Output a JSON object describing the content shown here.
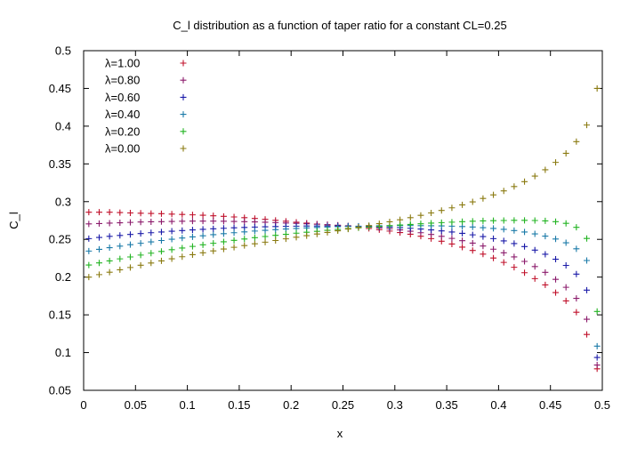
{
  "chart_data": {
    "type": "scatter",
    "title": "C_l distribution as a function of taper ratio for a constant CL=0.25",
    "xlabel": "x",
    "ylabel": "C_l",
    "xlim": [
      0,
      0.5
    ],
    "ylim": [
      0.05,
      0.5
    ],
    "x_ticks": [
      "0",
      "0.05",
      "0.1",
      "0.15",
      "0.2",
      "0.25",
      "0.3",
      "0.35",
      "0.4",
      "0.45",
      "0.5"
    ],
    "y_ticks": [
      "0.05",
      "0.1",
      "0.15",
      "0.2",
      "0.25",
      "0.3",
      "0.35",
      "0.4",
      "0.45",
      "0.5"
    ],
    "grid": false,
    "legend_position": "top-left",
    "marker": "+",
    "x": [
      0.005,
      0.015,
      0.025,
      0.035,
      0.045,
      0.055,
      0.065,
      0.075,
      0.085,
      0.095,
      0.105,
      0.115,
      0.125,
      0.135,
      0.145,
      0.155,
      0.165,
      0.175,
      0.185,
      0.195,
      0.205,
      0.215,
      0.225,
      0.235,
      0.245,
      0.255,
      0.265,
      0.275,
      0.285,
      0.295,
      0.305,
      0.315,
      0.325,
      0.335,
      0.345,
      0.355,
      0.365,
      0.375,
      0.385,
      0.395,
      0.405,
      0.415,
      0.425,
      0.435,
      0.445,
      0.455,
      0.465,
      0.475,
      0.485,
      0.495
    ],
    "series": [
      {
        "name": "λ=1.00",
        "color": "#c0102a",
        "values": [
          0.286,
          0.286,
          0.286,
          0.2855,
          0.285,
          0.2847,
          0.2843,
          0.284,
          0.2835,
          0.283,
          0.2825,
          0.282,
          0.2813,
          0.2805,
          0.2797,
          0.2787,
          0.2777,
          0.2765,
          0.2752,
          0.274,
          0.2727,
          0.2715,
          0.2703,
          0.2693,
          0.2683,
          0.2673,
          0.266,
          0.2645,
          0.2628,
          0.261,
          0.259,
          0.2568,
          0.2542,
          0.251,
          0.2475,
          0.2438,
          0.2397,
          0.2353,
          0.2305,
          0.2253,
          0.2195,
          0.213,
          0.2058,
          0.198,
          0.1897,
          0.1795,
          0.1685,
          0.1535,
          0.124,
          0.0785
        ]
      },
      {
        "name": "λ=0.80",
        "color": "#8b1a6b",
        "values": [
          0.2705,
          0.271,
          0.2715,
          0.272,
          0.2725,
          0.273,
          0.2733,
          0.2735,
          0.2738,
          0.274,
          0.2742,
          0.2742,
          0.2742,
          0.274,
          0.2738,
          0.2735,
          0.2732,
          0.2727,
          0.2722,
          0.2717,
          0.2712,
          0.2707,
          0.27,
          0.2695,
          0.2688,
          0.268,
          0.2672,
          0.2662,
          0.2652,
          0.264,
          0.2625,
          0.2608,
          0.2588,
          0.2565,
          0.254,
          0.2513,
          0.2483,
          0.245,
          0.2412,
          0.237,
          0.2322,
          0.2268,
          0.2208,
          0.214,
          0.2063,
          0.197,
          0.1865,
          0.1718,
          0.1442,
          0.0835
        ]
      },
      {
        "name": "λ=0.60",
        "color": "#1a1aa8",
        "values": [
          0.251,
          0.2525,
          0.254,
          0.2552,
          0.2565,
          0.2577,
          0.2588,
          0.2598,
          0.2608,
          0.2617,
          0.2625,
          0.2633,
          0.264,
          0.2647,
          0.2653,
          0.2658,
          0.2663,
          0.2667,
          0.267,
          0.2672,
          0.2675,
          0.2677,
          0.2677,
          0.2677,
          0.2677,
          0.2675,
          0.2673,
          0.267,
          0.2667,
          0.2662,
          0.2655,
          0.2647,
          0.2637,
          0.2625,
          0.2612,
          0.2598,
          0.258,
          0.256,
          0.2537,
          0.251,
          0.248,
          0.2445,
          0.2405,
          0.2358,
          0.2303,
          0.2237,
          0.2155,
          0.204,
          0.1827,
          0.0935
        ]
      },
      {
        "name": "λ=0.40",
        "color": "#1a7aa8",
        "values": [
          0.2345,
          0.2368,
          0.239,
          0.241,
          0.243,
          0.2448,
          0.2467,
          0.2485,
          0.2502,
          0.2518,
          0.2533,
          0.2548,
          0.2562,
          0.2575,
          0.2588,
          0.2599,
          0.261,
          0.262,
          0.2628,
          0.2637,
          0.2645,
          0.2652,
          0.2658,
          0.2663,
          0.2668,
          0.2672,
          0.2675,
          0.2678,
          0.268,
          0.2682,
          0.2683,
          0.2683,
          0.2682,
          0.268,
          0.2678,
          0.2675,
          0.267,
          0.2664,
          0.2655,
          0.2645,
          0.2633,
          0.2617,
          0.2598,
          0.2573,
          0.2543,
          0.2505,
          0.2455,
          0.2375,
          0.222,
          0.1085
        ]
      },
      {
        "name": "λ=0.20",
        "color": "#22b422",
        "values": [
          0.216,
          0.2188,
          0.2215,
          0.2242,
          0.2267,
          0.2292,
          0.2317,
          0.234,
          0.2363,
          0.2385,
          0.2407,
          0.2428,
          0.2448,
          0.2468,
          0.2487,
          0.2505,
          0.2522,
          0.2538,
          0.2553,
          0.2567,
          0.2582,
          0.2595,
          0.2607,
          0.262,
          0.2632,
          0.2643,
          0.2653,
          0.2663,
          0.2673,
          0.2682,
          0.269,
          0.2698,
          0.2707,
          0.2715,
          0.2722,
          0.2728,
          0.2735,
          0.274,
          0.2745,
          0.2748,
          0.275,
          0.2752,
          0.2752,
          0.275,
          0.2745,
          0.2735,
          0.2712,
          0.266,
          0.2512,
          0.1545
        ]
      },
      {
        "name": "λ=0.00",
        "color": "#8a7a10",
        "values": [
          0.2,
          0.2033,
          0.2065,
          0.2097,
          0.2127,
          0.2157,
          0.2187,
          0.2215,
          0.2243,
          0.227,
          0.2297,
          0.2322,
          0.2347,
          0.2372,
          0.2395,
          0.2418,
          0.2441,
          0.2463,
          0.2485,
          0.2507,
          0.2528,
          0.2549,
          0.2571,
          0.2592,
          0.2614,
          0.2637,
          0.266,
          0.2683,
          0.2708,
          0.2733,
          0.276,
          0.2788,
          0.2818,
          0.285,
          0.2883,
          0.2918,
          0.2957,
          0.2997,
          0.3042,
          0.309,
          0.3142,
          0.32,
          0.3265,
          0.3338,
          0.3422,
          0.352,
          0.364,
          0.3795,
          0.4015,
          0.45
        ]
      }
    ]
  }
}
